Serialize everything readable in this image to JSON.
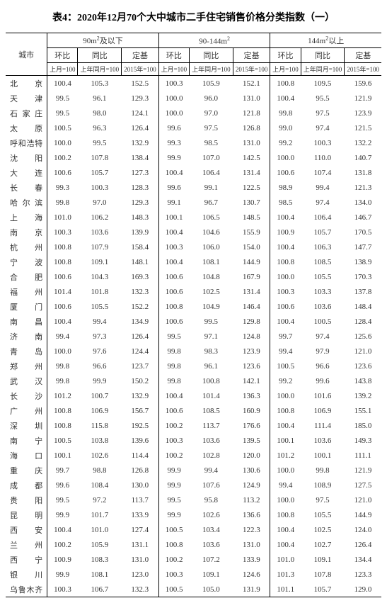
{
  "title": "表4：2020年12月70个大中城市二手住宅销售价格分类指数（一）",
  "header": {
    "city_label": "城市",
    "groups": [
      "90m²及以下",
      "90-144m²",
      "144m²以上"
    ],
    "subs": [
      "环比",
      "同比",
      "定基"
    ],
    "units": [
      "上月=100",
      "上年同月=100",
      "2015年=100"
    ]
  },
  "style": {
    "background_color": "#ffffff",
    "text_color": "#333333",
    "border_color": "#000000",
    "title_fontsize": 14,
    "body_fontsize": 11,
    "unit_fontsize": 9
  },
  "cities": [
    {
      "name": "北　京",
      "v": [
        "100.4",
        "105.3",
        "152.5",
        "100.3",
        "105.9",
        "152.1",
        "100.8",
        "109.5",
        "159.6"
      ]
    },
    {
      "name": "天　津",
      "v": [
        "99.5",
        "96.1",
        "129.3",
        "100.0",
        "96.0",
        "131.0",
        "100.4",
        "95.5",
        "121.9"
      ]
    },
    {
      "name": "石家庄",
      "v": [
        "99.5",
        "98.0",
        "124.1",
        "100.0",
        "97.0",
        "121.8",
        "99.8",
        "97.5",
        "123.9"
      ]
    },
    {
      "name": "太　原",
      "v": [
        "100.5",
        "96.3",
        "126.4",
        "99.6",
        "97.5",
        "126.8",
        "99.0",
        "97.4",
        "121.5"
      ]
    },
    {
      "name": "呼和浩特",
      "v": [
        "100.0",
        "99.5",
        "132.9",
        "99.3",
        "98.5",
        "131.0",
        "99.2",
        "100.3",
        "132.2"
      ]
    },
    {
      "name": "沈　阳",
      "v": [
        "100.2",
        "107.8",
        "138.4",
        "99.9",
        "107.0",
        "142.5",
        "100.0",
        "110.0",
        "140.7"
      ]
    },
    {
      "name": "大　连",
      "v": [
        "100.6",
        "105.7",
        "127.3",
        "100.4",
        "106.4",
        "131.4",
        "100.6",
        "107.4",
        "131.8"
      ]
    },
    {
      "name": "长　春",
      "v": [
        "99.3",
        "100.3",
        "128.3",
        "99.6",
        "99.1",
        "122.5",
        "98.9",
        "99.4",
        "121.3"
      ]
    },
    {
      "name": "哈尔滨",
      "v": [
        "99.8",
        "97.0",
        "129.3",
        "99.1",
        "96.7",
        "130.7",
        "98.5",
        "97.4",
        "134.0"
      ]
    },
    {
      "name": "上　海",
      "v": [
        "101.0",
        "106.2",
        "148.3",
        "100.1",
        "106.5",
        "148.5",
        "100.4",
        "106.4",
        "146.7"
      ]
    },
    {
      "name": "南　京",
      "v": [
        "100.3",
        "103.6",
        "139.9",
        "100.4",
        "104.6",
        "155.9",
        "100.9",
        "105.7",
        "170.5"
      ]
    },
    {
      "name": "杭　州",
      "v": [
        "100.8",
        "107.9",
        "158.4",
        "100.3",
        "106.0",
        "154.0",
        "100.4",
        "106.3",
        "147.7"
      ]
    },
    {
      "name": "宁　波",
      "v": [
        "100.8",
        "109.1",
        "148.1",
        "100.4",
        "108.1",
        "144.9",
        "100.8",
        "108.5",
        "138.9"
      ]
    },
    {
      "name": "合　肥",
      "v": [
        "100.6",
        "104.3",
        "169.3",
        "100.6",
        "104.8",
        "167.9",
        "100.0",
        "105.5",
        "170.3"
      ]
    },
    {
      "name": "福　州",
      "v": [
        "101.4",
        "101.8",
        "132.3",
        "100.6",
        "102.5",
        "131.4",
        "100.3",
        "103.3",
        "137.8"
      ]
    },
    {
      "name": "厦　门",
      "v": [
        "100.6",
        "105.5",
        "152.2",
        "100.8",
        "104.9",
        "146.4",
        "100.6",
        "103.6",
        "148.4"
      ]
    },
    {
      "name": "南　昌",
      "v": [
        "100.4",
        "99.4",
        "134.9",
        "100.6",
        "99.5",
        "129.8",
        "100.4",
        "100.5",
        "128.4"
      ]
    },
    {
      "name": "济　南",
      "v": [
        "99.4",
        "97.3",
        "126.4",
        "99.5",
        "97.1",
        "124.8",
        "99.7",
        "97.4",
        "125.6"
      ]
    },
    {
      "name": "青　岛",
      "v": [
        "100.0",
        "97.6",
        "124.4",
        "99.8",
        "98.3",
        "123.9",
        "99.4",
        "97.9",
        "121.0"
      ]
    },
    {
      "name": "郑　州",
      "v": [
        "99.8",
        "96.6",
        "123.7",
        "99.8",
        "96.1",
        "123.6",
        "100.5",
        "96.6",
        "123.6"
      ]
    },
    {
      "name": "武　汉",
      "v": [
        "99.8",
        "99.9",
        "150.2",
        "99.8",
        "100.8",
        "142.1",
        "99.2",
        "99.6",
        "143.8"
      ]
    },
    {
      "name": "长　沙",
      "v": [
        "101.2",
        "100.7",
        "132.9",
        "100.4",
        "101.4",
        "136.3",
        "100.0",
        "101.6",
        "139.2"
      ]
    },
    {
      "name": "广　州",
      "v": [
        "100.8",
        "106.9",
        "156.7",
        "100.6",
        "108.5",
        "160.9",
        "100.8",
        "106.9",
        "155.1"
      ]
    },
    {
      "name": "深　圳",
      "v": [
        "100.8",
        "115.8",
        "192.5",
        "100.2",
        "113.7",
        "176.6",
        "100.4",
        "111.4",
        "185.0"
      ]
    },
    {
      "name": "南　宁",
      "v": [
        "100.5",
        "103.8",
        "139.6",
        "100.3",
        "103.6",
        "139.5",
        "100.1",
        "103.6",
        "149.3"
      ]
    },
    {
      "name": "海　口",
      "v": [
        "100.1",
        "102.6",
        "114.4",
        "100.2",
        "102.8",
        "120.0",
        "101.2",
        "100.1",
        "111.1"
      ]
    },
    {
      "name": "重　庆",
      "v": [
        "99.7",
        "98.8",
        "126.8",
        "99.9",
        "99.4",
        "130.6",
        "100.0",
        "99.8",
        "121.9"
      ]
    },
    {
      "name": "成　都",
      "v": [
        "99.6",
        "108.4",
        "130.0",
        "99.9",
        "107.6",
        "124.9",
        "99.4",
        "108.9",
        "127.5"
      ]
    },
    {
      "name": "贵　阳",
      "v": [
        "99.5",
        "97.2",
        "113.7",
        "99.5",
        "95.8",
        "113.2",
        "100.0",
        "97.5",
        "121.0"
      ]
    },
    {
      "name": "昆　明",
      "v": [
        "99.9",
        "101.7",
        "133.9",
        "99.9",
        "102.6",
        "136.6",
        "100.8",
        "105.5",
        "144.9"
      ]
    },
    {
      "name": "西　安",
      "v": [
        "100.4",
        "101.0",
        "127.4",
        "100.5",
        "103.4",
        "122.3",
        "100.4",
        "102.5",
        "124.0"
      ]
    },
    {
      "name": "兰　州",
      "v": [
        "100.2",
        "105.9",
        "131.1",
        "100.8",
        "103.6",
        "131.0",
        "100.4",
        "102.7",
        "126.4"
      ]
    },
    {
      "name": "西　宁",
      "v": [
        "100.9",
        "108.3",
        "131.0",
        "100.2",
        "107.2",
        "133.9",
        "101.0",
        "109.1",
        "134.4"
      ]
    },
    {
      "name": "银　川",
      "v": [
        "99.9",
        "108.1",
        "123.0",
        "100.3",
        "109.1",
        "124.6",
        "101.3",
        "107.8",
        "123.3"
      ]
    },
    {
      "name": "乌鲁木齐",
      "v": [
        "100.3",
        "106.7",
        "132.3",
        "100.5",
        "105.0",
        "131.9",
        "101.1",
        "105.7",
        "129.0"
      ]
    }
  ]
}
